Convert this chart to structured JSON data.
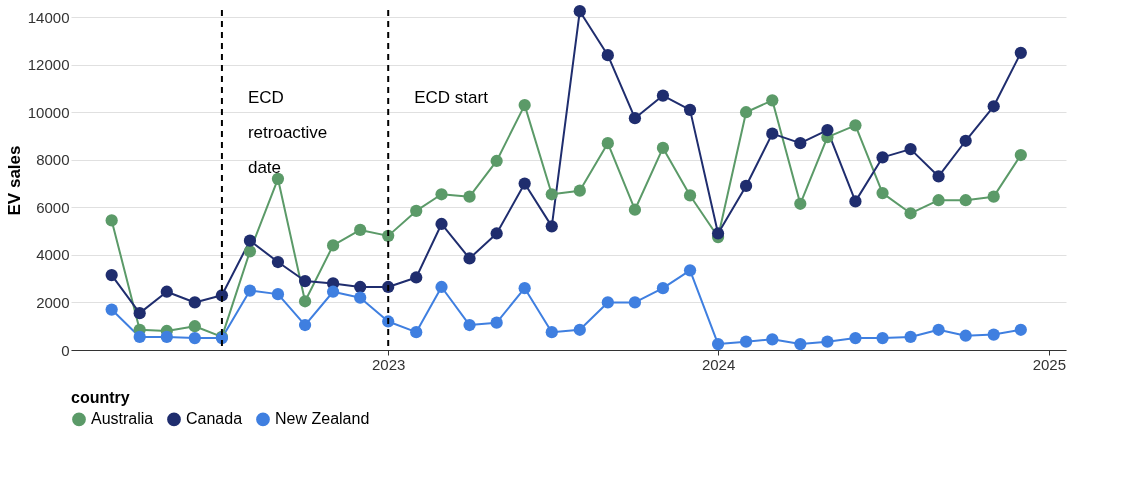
{
  "chart_data": {
    "type": "line",
    "xlabel": null,
    "ylabel": "EV sales",
    "legend_title": "country",
    "x": [
      "2022-03",
      "2022-04",
      "2022-05",
      "2022-06",
      "2022-07",
      "2022-08",
      "2022-09",
      "2022-10",
      "2022-11",
      "2022-12",
      "2023-01",
      "2023-02",
      "2023-03",
      "2023-04",
      "2023-05",
      "2023-06",
      "2023-07",
      "2023-08",
      "2023-09",
      "2023-10",
      "2023-11",
      "2023-12",
      "2024-01",
      "2024-02",
      "2024-03",
      "2024-04",
      "2024-05",
      "2024-06",
      "2024-07",
      "2024-08",
      "2024-09",
      "2024-10",
      "2024-11",
      "2024-12"
    ],
    "series": [
      {
        "name": "Australia",
        "color": "#5b9a68",
        "values": [
          5450,
          850,
          800,
          1000,
          550,
          4150,
          7200,
          2050,
          4400,
          5050,
          4800,
          5850,
          6550,
          6450,
          7950,
          10300,
          6550,
          6700,
          8700,
          5900,
          8500,
          6500,
          4750,
          10000,
          10500,
          6150,
          8950,
          9450,
          6600,
          5750,
          6300,
          6300,
          6450,
          8200
        ]
      },
      {
        "name": "Canada",
        "color": "#1f2d6e",
        "values": [
          3150,
          1550,
          2450,
          2000,
          2300,
          4600,
          3700,
          2900,
          2800,
          2650,
          2650,
          3050,
          5300,
          3850,
          4900,
          7000,
          5200,
          14250,
          12400,
          9750,
          10700,
          10100,
          4900,
          6900,
          9100,
          8700,
          9250,
          6250,
          8100,
          8450,
          7300,
          8800,
          10250,
          12500
        ]
      },
      {
        "name": "New Zealand",
        "color": "#3f7fe0",
        "values": [
          1700,
          550,
          550,
          500,
          500,
          2500,
          2350,
          1050,
          2450,
          2200,
          1200,
          750,
          2650,
          1050,
          1150,
          2600,
          750,
          850,
          2000,
          2000,
          2600,
          3350,
          250,
          350,
          450,
          250,
          350,
          500,
          500,
          550,
          850,
          600,
          650,
          850
        ]
      }
    ],
    "xlim": [
      "2022-01-15",
      "2025-01-20"
    ],
    "xticks": [
      "2023",
      "2024",
      "2025"
    ],
    "ylim": [
      0,
      14300
    ],
    "yticks": [
      0,
      2000,
      4000,
      6000,
      8000,
      10000,
      12000,
      14000
    ],
    "ref_lines": [
      {
        "axis": "x",
        "value": "2022-07",
        "label": "ECD\nretroactive\ndate",
        "color": "#000000",
        "line_style": "dashed"
      },
      {
        "axis": "x",
        "value": "2023-01",
        "label": "ECD start",
        "color": "#000000",
        "line_style": "dashed"
      }
    ],
    "grid": "y",
    "legend": "bottom",
    "marker": "circle",
    "line_style": "solid"
  }
}
